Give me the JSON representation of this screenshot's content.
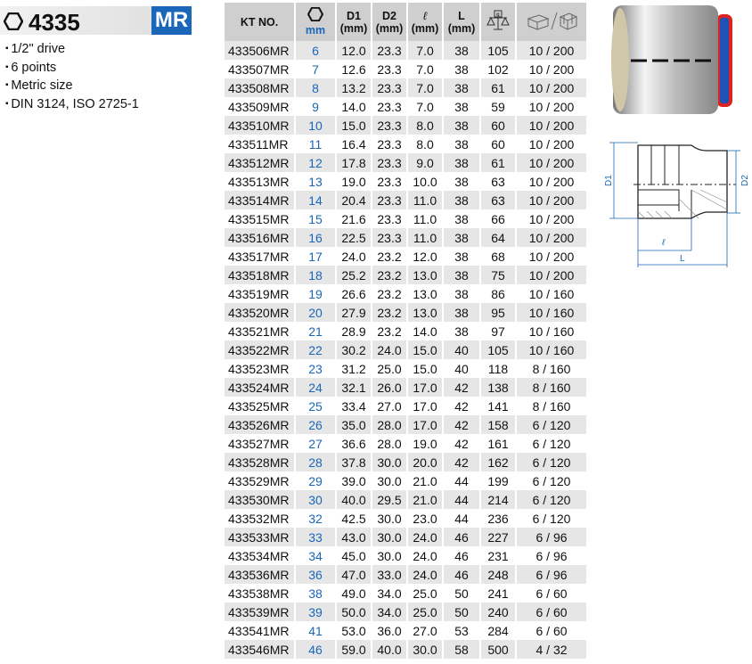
{
  "header": {
    "model": "4335",
    "badge": "MR"
  },
  "features": [
    "1/2\" drive",
    "6 points",
    "Metric size",
    "DIN 3124, ISO 2725-1"
  ],
  "table": {
    "headers": {
      "kt": "KT NO.",
      "mm": "mm",
      "d1": "D1",
      "d2": "D2",
      "l": "ℓ",
      "L": "L",
      "unit": "(mm)"
    },
    "rows": [
      [
        "433506MR",
        "6",
        "12.0",
        "23.3",
        "7.0",
        "38",
        "105",
        "10 / 200"
      ],
      [
        "433507MR",
        "7",
        "12.6",
        "23.3",
        "7.0",
        "38",
        "102",
        "10 / 200"
      ],
      [
        "433508MR",
        "8",
        "13.2",
        "23.3",
        "7.0",
        "38",
        "61",
        "10 / 200"
      ],
      [
        "433509MR",
        "9",
        "14.0",
        "23.3",
        "7.0",
        "38",
        "59",
        "10 / 200"
      ],
      [
        "433510MR",
        "10",
        "15.0",
        "23.3",
        "8.0",
        "38",
        "60",
        "10 / 200"
      ],
      [
        "433511MR",
        "11",
        "16.4",
        "23.3",
        "8.0",
        "38",
        "60",
        "10 / 200"
      ],
      [
        "433512MR",
        "12",
        "17.8",
        "23.3",
        "9.0",
        "38",
        "61",
        "10 / 200"
      ],
      [
        "433513MR",
        "13",
        "19.0",
        "23.3",
        "10.0",
        "38",
        "63",
        "10 / 200"
      ],
      [
        "433514MR",
        "14",
        "20.4",
        "23.3",
        "11.0",
        "38",
        "63",
        "10 / 200"
      ],
      [
        "433515MR",
        "15",
        "21.6",
        "23.3",
        "11.0",
        "38",
        "66",
        "10 / 200"
      ],
      [
        "433516MR",
        "16",
        "22.5",
        "23.3",
        "11.0",
        "38",
        "64",
        "10 / 200"
      ],
      [
        "433517MR",
        "17",
        "24.0",
        "23.2",
        "12.0",
        "38",
        "68",
        "10 / 200"
      ],
      [
        "433518MR",
        "18",
        "25.2",
        "23.2",
        "13.0",
        "38",
        "75",
        "10 / 200"
      ],
      [
        "433519MR",
        "19",
        "26.6",
        "23.2",
        "13.0",
        "38",
        "86",
        "10 / 160"
      ],
      [
        "433520MR",
        "20",
        "27.9",
        "23.2",
        "13.0",
        "38",
        "95",
        "10 / 160"
      ],
      [
        "433521MR",
        "21",
        "28.9",
        "23.2",
        "14.0",
        "38",
        "97",
        "10 / 160"
      ],
      [
        "433522MR",
        "22",
        "30.2",
        "24.0",
        "15.0",
        "40",
        "105",
        "10 / 160"
      ],
      [
        "433523MR",
        "23",
        "31.2",
        "25.0",
        "15.0",
        "40",
        "118",
        "8 / 160"
      ],
      [
        "433524MR",
        "24",
        "32.1",
        "26.0",
        "17.0",
        "42",
        "138",
        "8 / 160"
      ],
      [
        "433525MR",
        "25",
        "33.4",
        "27.0",
        "17.0",
        "42",
        "141",
        "8 / 160"
      ],
      [
        "433526MR",
        "26",
        "35.0",
        "28.0",
        "17.0",
        "42",
        "158",
        "6 / 120"
      ],
      [
        "433527MR",
        "27",
        "36.6",
        "28.0",
        "19.0",
        "42",
        "161",
        "6 / 120"
      ],
      [
        "433528MR",
        "28",
        "37.8",
        "30.0",
        "20.0",
        "42",
        "162",
        "6 / 120"
      ],
      [
        "433529MR",
        "29",
        "39.0",
        "30.0",
        "21.0",
        "44",
        "199",
        "6 / 120"
      ],
      [
        "433530MR",
        "30",
        "40.0",
        "29.5",
        "21.0",
        "44",
        "214",
        "6 / 120"
      ],
      [
        "433532MR",
        "32",
        "42.5",
        "30.0",
        "23.0",
        "44",
        "236",
        "6 / 120"
      ],
      [
        "433533MR",
        "33",
        "43.0",
        "30.0",
        "24.0",
        "46",
        "227",
        "6 / 96"
      ],
      [
        "433534MR",
        "34",
        "45.0",
        "30.0",
        "24.0",
        "46",
        "231",
        "6 / 96"
      ],
      [
        "433536MR",
        "36",
        "47.0",
        "33.0",
        "24.0",
        "46",
        "248",
        "6 / 96"
      ],
      [
        "433538MR",
        "38",
        "49.0",
        "34.0",
        "25.0",
        "50",
        "241",
        "6 / 60"
      ],
      [
        "433539MR",
        "39",
        "50.0",
        "34.0",
        "25.0",
        "50",
        "240",
        "6 / 60"
      ],
      [
        "433541MR",
        "41",
        "53.0",
        "36.0",
        "27.0",
        "53",
        "284",
        "6 / 60"
      ],
      [
        "433546MR",
        "46",
        "59.0",
        "40.0",
        "30.0",
        "58",
        "500",
        "4 / 32"
      ]
    ]
  },
  "drawing": {
    "d1": "D1",
    "d2": "D2",
    "l": "ℓ",
    "L": "L"
  },
  "colors": {
    "accent": "#1a66b8",
    "header_bg": "#cfcfcf",
    "row_alt": "#e6e6e6"
  }
}
